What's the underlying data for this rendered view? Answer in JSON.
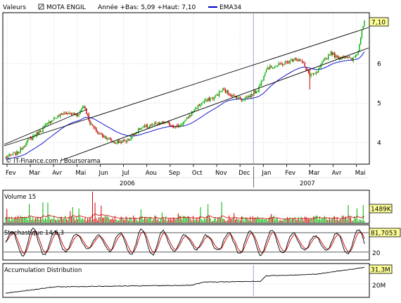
{
  "header": {
    "label": "Valeurs",
    "name": "MOTA ENGIL",
    "range_text": "Année +Bas: 5,09 +Haut: 7,10",
    "ema_label": "EMA34",
    "ema_color": "#0000cc"
  },
  "credit": "© IT-Finance.com / Boursorama",
  "colors": {
    "up": "#00b000",
    "down": "#cc0000",
    "volume_avg": "#cc0000",
    "stoch_k": "#000000",
    "stoch_d": "#cc0000",
    "grid": "#c0c0c0",
    "marker": "#99aacc"
  },
  "chart_data": [
    {
      "type": "candlestick",
      "name": "price",
      "x_months": [
        "Fev",
        "Mar",
        "Avr",
        "Mai",
        "Jun",
        "Jul",
        "Aou",
        "Sep",
        "Oct",
        "Nov",
        "Dec",
        "Jan",
        "Fev",
        "Mar",
        "Avr",
        "Mai"
      ],
      "years": [
        "2006",
        "2007"
      ],
      "y_ticks": [
        "4",
        "5",
        "6"
      ],
      "ylim": [
        3.45,
        7.3
      ],
      "last_value": "7,10",
      "key_points": [
        [
          0,
          3.62
        ],
        [
          10,
          3.75
        ],
        [
          18,
          4.05
        ],
        [
          28,
          4.3
        ],
        [
          38,
          4.6
        ],
        [
          47,
          4.75
        ],
        [
          58,
          4.7
        ],
        [
          63,
          4.95
        ],
        [
          68,
          4.5
        ],
        [
          74,
          4.25
        ],
        [
          80,
          4.15
        ],
        [
          88,
          4.0
        ],
        [
          98,
          4.05
        ],
        [
          108,
          4.35
        ],
        [
          118,
          4.45
        ],
        [
          128,
          4.5
        ],
        [
          138,
          4.4
        ],
        [
          145,
          4.55
        ],
        [
          152,
          4.85
        ],
        [
          160,
          5.05
        ],
        [
          168,
          5.15
        ],
        [
          175,
          5.35
        ],
        [
          182,
          5.2
        ],
        [
          190,
          5.1
        ],
        [
          198,
          5.2
        ],
        [
          203,
          5.35
        ],
        [
          206,
          5.55
        ],
        [
          210,
          5.9
        ],
        [
          218,
          5.95
        ],
        [
          228,
          6.05
        ],
        [
          233,
          6.15
        ],
        [
          240,
          6.0
        ],
        [
          245,
          5.7
        ],
        [
          250,
          5.75
        ],
        [
          257,
          6.1
        ],
        [
          262,
          6.3
        ],
        [
          267,
          6.15
        ],
        [
          273,
          6.2
        ],
        [
          279,
          6.1
        ],
        [
          284,
          6.3
        ],
        [
          287,
          6.9
        ],
        [
          289,
          7.1
        ]
      ]
    },
    {
      "type": "bar",
      "name": "volume",
      "title": "Volume 15",
      "last_value": "1489K"
    },
    {
      "type": "line",
      "name": "stochastic",
      "title": "Stochastique 14,6,3",
      "last_value": "81,7053",
      "y_ticks": [
        "20"
      ],
      "levels": [
        20,
        80
      ]
    },
    {
      "type": "line",
      "name": "accumulation",
      "title": "Accumulation Distribution",
      "last_value": "31,3M",
      "y_ticks": [
        "20M"
      ]
    }
  ]
}
